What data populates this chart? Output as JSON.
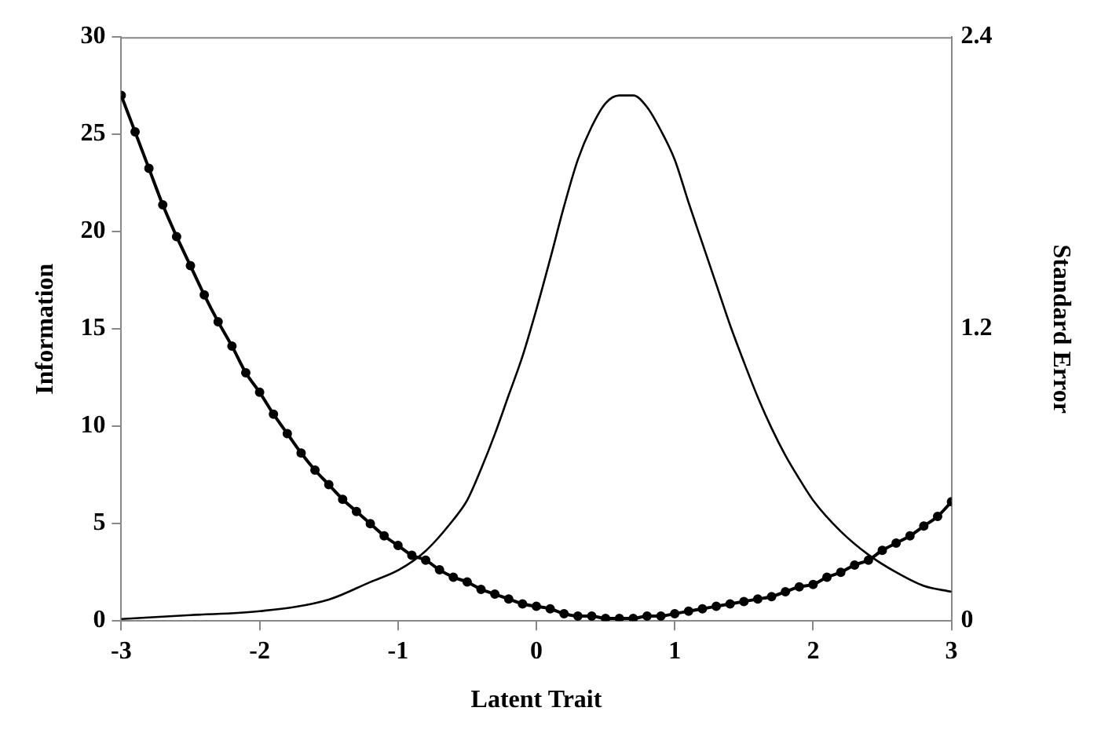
{
  "chart_data": {
    "type": "line",
    "xlabel": "Latent Trait",
    "ylabel": "Information",
    "y2label": "Standard Error",
    "xlim": [
      -3,
      3
    ],
    "xticks": [
      -3,
      -2,
      -1,
      0,
      1,
      2,
      3
    ],
    "ylim": [
      0,
      30
    ],
    "yticks": [
      0,
      5,
      10,
      15,
      20,
      25,
      30
    ],
    "y2lim": [
      0,
      2.4
    ],
    "y2ticks": [
      0,
      1.2,
      2.4
    ],
    "grid": false,
    "legend": false,
    "series": [
      {
        "color": "#000000",
        "marker": "none",
        "x": [
          -3,
          -2.5,
          -2,
          -1.5,
          -1.2,
          -1,
          -0.8,
          -0.6,
          -0.5,
          -0.4,
          -0.3,
          -0.2,
          -0.1,
          0,
          0.1,
          0.2,
          0.3,
          0.4,
          0.5,
          0.6,
          0.7,
          0.8,
          0.9,
          1,
          1.1,
          1.2,
          1.3,
          1.4,
          1.5,
          1.6,
          1.7,
          1.8,
          1.9,
          2,
          2.2,
          2.4,
          2.6,
          2.8,
          3
        ],
        "values": [
          0.1,
          0.3,
          0.5,
          1.1,
          2,
          2.6,
          3.6,
          5.2,
          6.2,
          7.8,
          9.6,
          11.6,
          13.6,
          16,
          18.6,
          21.3,
          23.7,
          25.4,
          26.6,
          27,
          27,
          26.4,
          25.2,
          23.7,
          21.5,
          19.4,
          17.3,
          15.2,
          13.3,
          11.5,
          9.9,
          8.5,
          7.3,
          6.2,
          4.6,
          3.4,
          2.5,
          1.8,
          1.5
        ]
      },
      {
        "color": "#000000",
        "marker": "circle",
        "axis": "y2",
        "x": [
          -3,
          -2.9,
          -2.8,
          -2.7,
          -2.6,
          -2.5,
          -2.4,
          -2.3,
          -2.2,
          -2.1,
          -2,
          -1.9,
          -1.8,
          -1.7,
          -1.6,
          -1.5,
          -1.4,
          -1.3,
          -1.2,
          -1.1,
          -1,
          -0.9,
          -0.8,
          -0.7,
          -0.6,
          -0.5,
          -0.4,
          -0.3,
          -0.2,
          -0.1,
          0,
          0.1,
          0.2,
          0.3,
          0.4,
          0.5,
          0.6,
          0.7,
          0.8,
          0.9,
          1,
          1.1,
          1.2,
          1.3,
          1.4,
          1.5,
          1.6,
          1.7,
          1.8,
          1.9,
          2,
          2.1,
          2.2,
          2.3,
          2.4,
          2.5,
          2.6,
          2.7,
          2.8,
          2.9,
          3
        ],
        "values": [
          2.16,
          2.01,
          1.86,
          1.71,
          1.58,
          1.46,
          1.34,
          1.23,
          1.13,
          1.02,
          0.94,
          0.85,
          0.77,
          0.69,
          0.62,
          0.56,
          0.5,
          0.45,
          0.4,
          0.35,
          0.31,
          0.27,
          0.25,
          0.21,
          0.18,
          0.16,
          0.13,
          0.11,
          0.09,
          0.07,
          0.06,
          0.05,
          0.03,
          0.02,
          0.02,
          0.01,
          0.01,
          0.01,
          0.02,
          0.02,
          0.03,
          0.04,
          0.05,
          0.06,
          0.07,
          0.08,
          0.09,
          0.1,
          0.12,
          0.14,
          0.15,
          0.18,
          0.2,
          0.23,
          0.25,
          0.29,
          0.32,
          0.35,
          0.39,
          0.43,
          0.49
        ]
      }
    ]
  }
}
